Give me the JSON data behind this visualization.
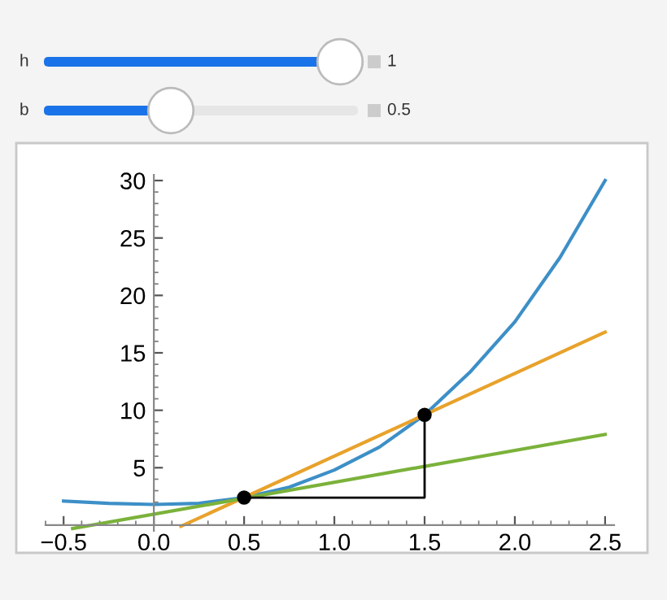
{
  "chart_data": {
    "type": "line",
    "annotations": [
      "h",
      "1",
      "b",
      "0.5"
    ],
    "series": [
      {
        "color": "#3d8fc7",
        "x": [
          -0.5,
          -0.25,
          0,
          0.25,
          0.5,
          0.75,
          1,
          1.25,
          1.5,
          1.75,
          2,
          2.25,
          2.5
        ],
        "values": [
          2.1,
          1.9,
          1.8,
          1.9,
          2.4,
          3.3,
          4.8,
          6.8,
          9.6,
          13.3,
          17.7,
          23.3,
          30
        ]
      },
      {
        "color": "#e8a22b",
        "x": [
          0.15,
          2.5
        ],
        "values": [
          -0.1,
          16.8
        ]
      },
      {
        "color": "#7bb23b",
        "x": [
          -0.45,
          2.5
        ],
        "values": [
          -0.3,
          7.9
        ]
      },
      {
        "color": "#000000",
        "x": [
          0.5,
          1.5,
          1.5
        ],
        "values": [
          2.4,
          2.4,
          9.6
        ]
      },
      {
        "type": "scatter",
        "marker": "circle",
        "color": "#000000",
        "x": [
          0.5,
          1.5
        ],
        "values": [
          2.4,
          9.6
        ]
      }
    ],
    "xlim": [
      -0.6,
      2.55
    ],
    "ylim": [
      -0.5,
      30.5
    ],
    "xticks": [
      {
        "value": -0.5,
        "label": "−0.5"
      },
      {
        "value": 0,
        "label": "0.0"
      },
      {
        "value": 0.5,
        "label": "0.5"
      },
      {
        "value": 1,
        "label": "1.0"
      },
      {
        "value": 1.5,
        "label": "1.5"
      },
      {
        "value": 2,
        "label": "2.0"
      },
      {
        "value": 2.5,
        "label": "2.5"
      }
    ],
    "yticks": [
      5,
      10,
      15,
      20,
      25,
      30
    ],
    "grid": false,
    "legend": false
  }
}
